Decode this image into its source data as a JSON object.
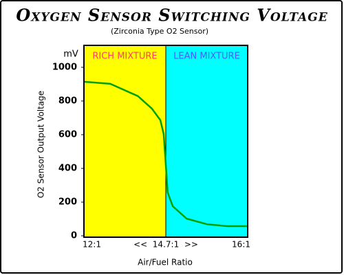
{
  "chart_data": {
    "type": "line",
    "title": "Oxygen Sensor Switching Voltage",
    "subtitle": "(Zirconia Type O2 Sensor)",
    "x_label": "Air/Fuel Ratio",
    "y_label": "O2 Sensor Output Voltage",
    "y_unit": "mV",
    "x": [
      12,
      12.87,
      13.78,
      14.24,
      14.52,
      14.63,
      14.7,
      14.73,
      14.81,
      15.03,
      15.35,
      15.68,
      16
    ],
    "series": [
      {
        "name": "O2 Sensor Output Voltage",
        "color": "#00a000",
        "values": [
          914,
          902,
          829,
          755,
          686,
          604,
          420,
          257,
          176,
          102,
          69,
          57,
          57
        ]
      }
    ],
    "regions": [
      {
        "name": "RICH MIXTURE",
        "color": "#ffff00",
        "text_color": "#ff4060",
        "range": [
          12,
          14.7
        ]
      },
      {
        "name": "LEAN MIXTURE",
        "color": "#00ffff",
        "text_color": "#4060ff",
        "range": [
          14.7,
          16
        ]
      }
    ],
    "xlim": [
      12,
      16
    ],
    "xticks": [
      {
        "value": 12,
        "label": "12:1"
      },
      {
        "value": 14.7,
        "label": "<<  14.7:1  >>"
      },
      {
        "value": 16,
        "label": "16:1"
      }
    ],
    "ylim": [
      0,
      1130
    ],
    "yticks": [
      0,
      200,
      400,
      600,
      800,
      1000
    ]
  }
}
